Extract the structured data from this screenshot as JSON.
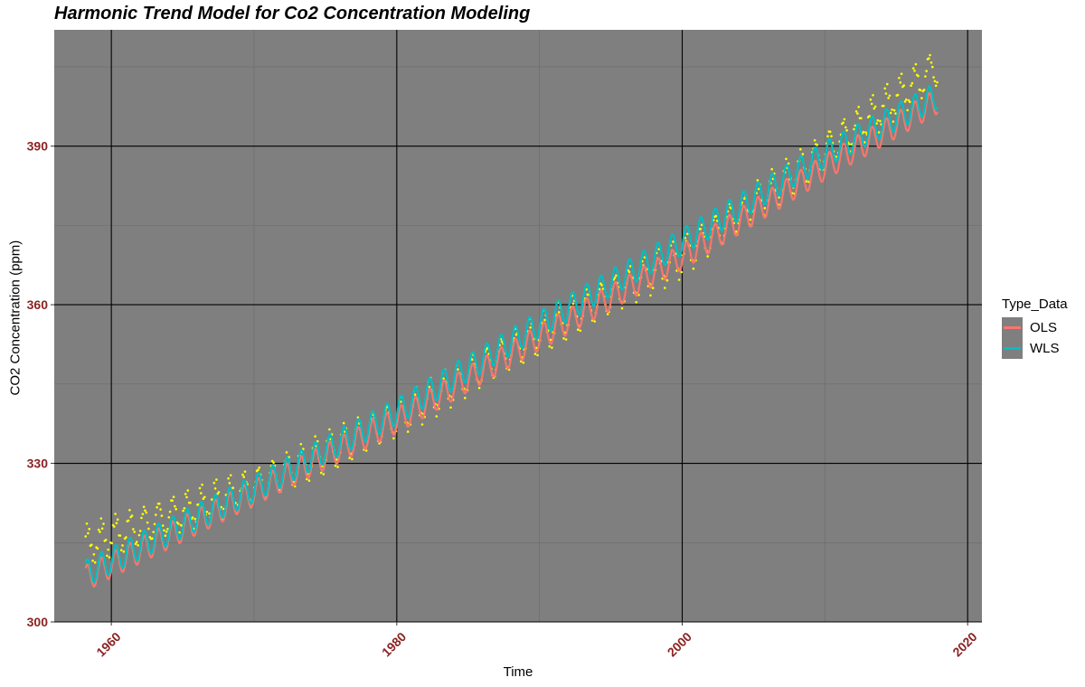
{
  "chart_data": {
    "type": "line",
    "title": "Harmonic Trend Model for Co2 Concentration Modeling",
    "xlabel": "Time",
    "ylabel": "CO2 Concentration (ppm)",
    "xlim": [
      1956,
      2021
    ],
    "ylim": [
      300,
      412
    ],
    "x_ticks": [
      1960,
      1980,
      2000,
      2020
    ],
    "x_tick_labels": [
      "1960",
      "1980",
      "2000",
      "2020"
    ],
    "y_ticks": [
      300,
      330,
      360,
      390
    ],
    "y_tick_labels": [
      "300",
      "330",
      "360",
      "390"
    ],
    "grid": true,
    "legend": {
      "title": "Type_Data",
      "position": "right"
    },
    "series": [
      {
        "name": "OLS",
        "color": "#F8766D",
        "x_start": 1958.2,
        "x_end": 2017.9,
        "trend_at_x": [
          1958.2,
          1970,
          1980,
          1990,
          2000,
          2010,
          2017.9
        ],
        "trend_values": [
          308.3,
          324.4,
          338.1,
          353.8,
          369.0,
          386.0,
          398.6
        ],
        "seasonal_amplitude": 2.4
      },
      {
        "name": "WLS",
        "color": "#00BFC4",
        "x_start": 1958.2,
        "x_end": 2017.9,
        "trend_at_x": [
          1958.2,
          1970,
          1980,
          1990,
          2000,
          2010,
          2017.9
        ],
        "trend_values": [
          309.2,
          325.2,
          339.8,
          356.3,
          371.9,
          388.4,
          399.6
        ],
        "seasonal_amplitude": 2.5
      }
    ],
    "observed_points": {
      "color": "#FFFF00",
      "x_start": 1958.2,
      "x_end": 2017.9,
      "trend_at_x": [
        1958.2,
        1970,
        1980,
        1990,
        2000,
        2010,
        2017.9
      ],
      "trend_values": [
        314.5,
        325.5,
        338.5,
        354.5,
        369.0,
        389.0,
        405.0
      ],
      "seasonal_amplitude": 3.2
    },
    "styles": {
      "panel_background": "#7F7F7F",
      "major_grid_color": "#000000",
      "minor_grid_color": "#6b6b6b",
      "tick_label_color": "#8B2323"
    }
  }
}
